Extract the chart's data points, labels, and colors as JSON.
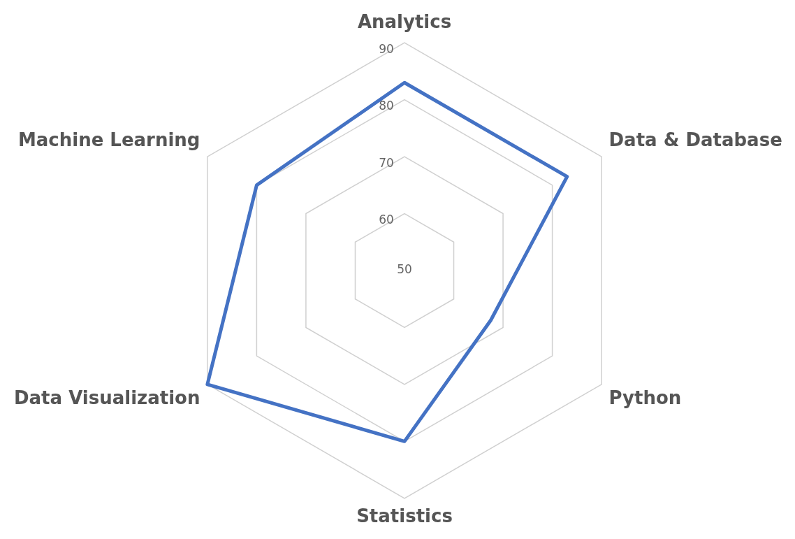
{
  "chart_data": {
    "type": "radar",
    "categories": [
      "Analytics",
      "Data & Database",
      "Python",
      "Statistics",
      "Data Visualization",
      "Machine Learning"
    ],
    "series": [
      {
        "color": "#4472c4",
        "values": [
          83,
          83,
          67.5,
          80,
          90,
          80
        ]
      }
    ],
    "ylim": [
      50,
      90
    ],
    "yticks": [
      50,
      60,
      70,
      80,
      90
    ],
    "grid": true,
    "legend": false,
    "marker": "none",
    "line_style": "solid"
  }
}
